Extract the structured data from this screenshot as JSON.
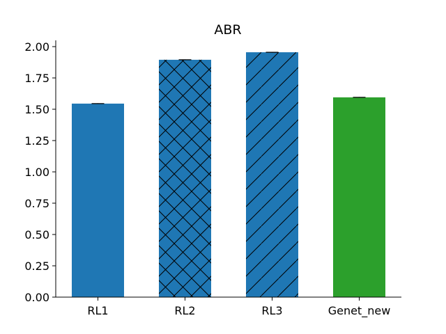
{
  "chart_data": {
    "type": "bar",
    "title": "ABR",
    "xlabel": "",
    "ylabel": "",
    "categories": [
      "RL1",
      "RL2",
      "RL3",
      "Genet_new"
    ],
    "values": [
      1.545,
      1.895,
      1.955,
      1.595
    ],
    "errors": [
      0.003,
      0.003,
      0.003,
      0.003
    ],
    "colors": [
      "#1f77b4",
      "#1f77b4",
      "#1f77b4",
      "#2ca02c"
    ],
    "hatches": [
      "none",
      "cross-diagonal",
      "diagonal",
      "none"
    ],
    "ylim": [
      0,
      2.05
    ],
    "yticks": [
      0.0,
      0.25,
      0.5,
      0.75,
      1.0,
      1.25,
      1.5,
      1.75,
      2.0
    ],
    "ytick_labels": [
      "0.00",
      "0.25",
      "0.50",
      "0.75",
      "1.00",
      "1.25",
      "1.50",
      "1.75",
      "2.00"
    ],
    "grid": false,
    "spines": [
      "left",
      "bottom"
    ]
  }
}
